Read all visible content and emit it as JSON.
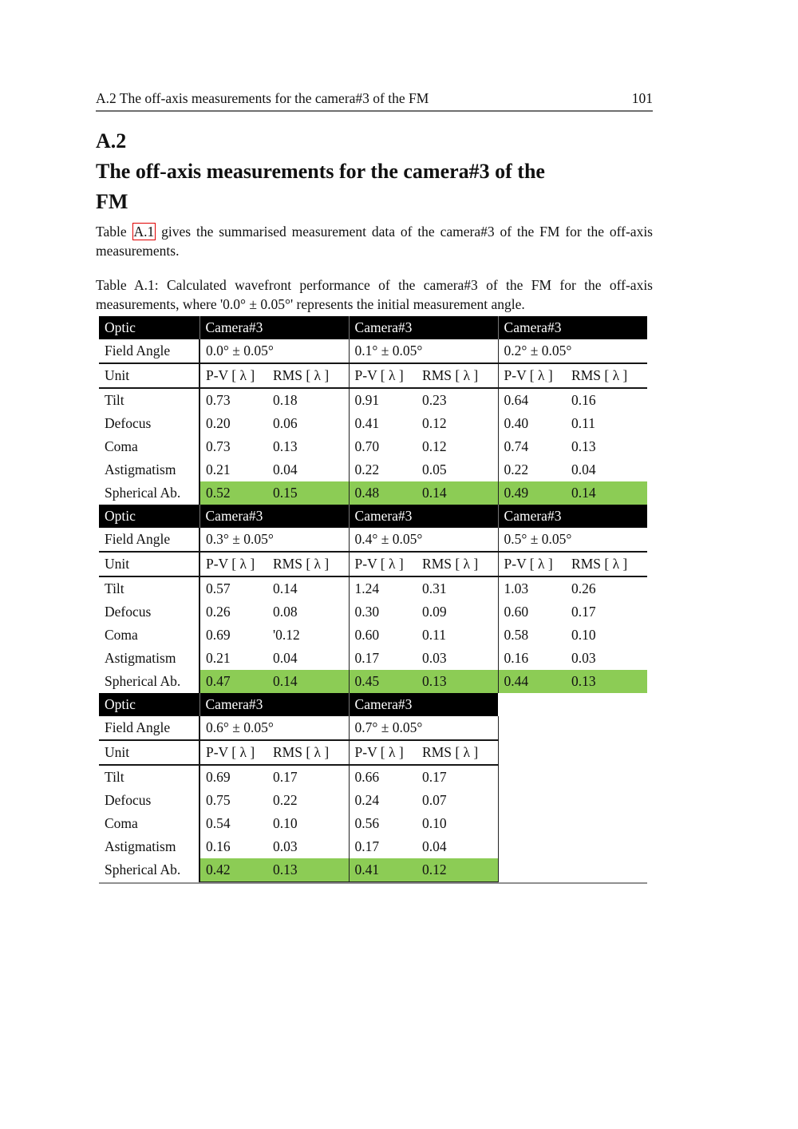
{
  "colors": {
    "header_bg": "#000000",
    "header_text": "#ffffff",
    "highlight_green": "#8CCC55",
    "link_red": "#e00000"
  },
  "running_header": {
    "title": "A.2 The off-axis measurements for the camera#3 of the FM",
    "page_number": "101"
  },
  "section": {
    "number": "A.2",
    "title_line1": "The off-axis measurements for the camera#3 of the",
    "title_line2": "FM"
  },
  "intro": {
    "before_link": "Table ",
    "link_label": "A.1",
    "after_link": " gives the summarised measurement data of the camera#3 of the FM for the off-axis measurements."
  },
  "caption": "Table A.1: Calculated wavefront performance of the camera#3 of the FM for the off-axis measurements, where '0.0° ± 0.05°' represents the initial measurement angle.",
  "table": {
    "header_label": "Optic",
    "camera_label": "Camera#3",
    "field_angle_label": "Field Angle",
    "unit_label": "Unit",
    "unit_pv": "P-V [ λ ]",
    "unit_rms": "RMS [ λ ]",
    "aberration_labels": [
      "Tilt",
      "Defocus",
      "Coma",
      "Astigmatism",
      "Spherical Ab."
    ],
    "highlight_row_label": "Spherical Ab.",
    "blocks": [
      {
        "groups": [
          {
            "field_angle": "0.0° ± 0.05°",
            "rows": [
              [
                "0.73",
                "0.18"
              ],
              [
                "0.20",
                "0.06"
              ],
              [
                "0.73",
                "0.13"
              ],
              [
                "0.21",
                "0.04"
              ],
              [
                "0.52",
                "0.15"
              ]
            ]
          },
          {
            "field_angle": "0.1° ± 0.05°",
            "rows": [
              [
                "0.91",
                "0.23"
              ],
              [
                "0.41",
                "0.12"
              ],
              [
                "0.70",
                "0.12"
              ],
              [
                "0.22",
                "0.05"
              ],
              [
                "0.48",
                "0.14"
              ]
            ]
          },
          {
            "field_angle": "0.2° ± 0.05°",
            "rows": [
              [
                "0.64",
                "0.16"
              ],
              [
                "0.40",
                "0.11"
              ],
              [
                "0.74",
                "0.13"
              ],
              [
                "0.22",
                "0.04"
              ],
              [
                "0.49",
                "0.14"
              ]
            ]
          }
        ]
      },
      {
        "groups": [
          {
            "field_angle": "0.3° ± 0.05°",
            "rows": [
              [
                "0.57",
                "0.14"
              ],
              [
                "0.26",
                "0.08"
              ],
              [
                "0.69",
                "'0.12"
              ],
              [
                "0.21",
                "0.04"
              ],
              [
                "0.47",
                "0.14"
              ]
            ]
          },
          {
            "field_angle": "0.4° ± 0.05°",
            "rows": [
              [
                "1.24",
                "0.31"
              ],
              [
                "0.30",
                "0.09"
              ],
              [
                "0.60",
                "0.11"
              ],
              [
                "0.17",
                "0.03"
              ],
              [
                "0.45",
                "0.13"
              ]
            ]
          },
          {
            "field_angle": "0.5° ± 0.05°",
            "rows": [
              [
                "1.03",
                "0.26"
              ],
              [
                "0.60",
                "0.17"
              ],
              [
                "0.58",
                "0.10"
              ],
              [
                "0.16",
                "0.03"
              ],
              [
                "0.44",
                "0.13"
              ]
            ]
          }
        ]
      },
      {
        "groups": [
          {
            "field_angle": "0.6° ± 0.05°",
            "rows": [
              [
                "0.69",
                "0.17"
              ],
              [
                "0.75",
                "0.22"
              ],
              [
                "0.54",
                "0.10"
              ],
              [
                "0.16",
                "0.03"
              ],
              [
                "0.42",
                "0.13"
              ]
            ]
          },
          {
            "field_angle": "0.7° ± 0.05°",
            "rows": [
              [
                "0.66",
                "0.17"
              ],
              [
                "0.24",
                "0.07"
              ],
              [
                "0.56",
                "0.10"
              ],
              [
                "0.17",
                "0.04"
              ],
              [
                "0.41",
                "0.12"
              ]
            ]
          }
        ]
      }
    ],
    "groups_per_block": 3
  }
}
